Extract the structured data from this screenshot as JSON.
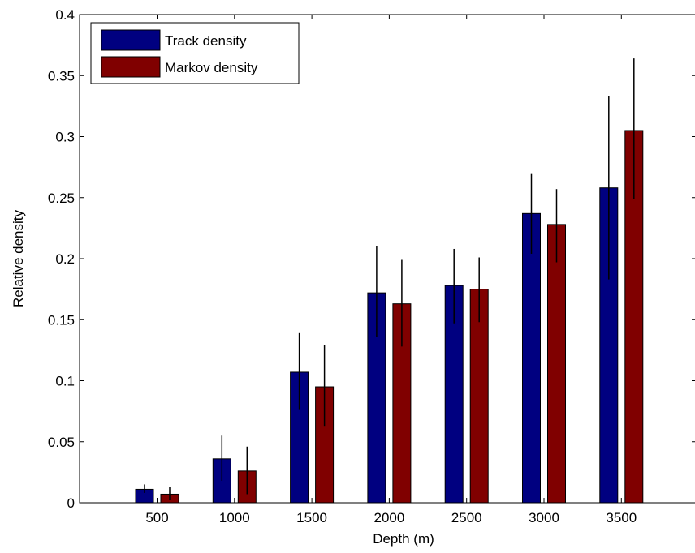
{
  "chart_data": {
    "type": "bar",
    "title": "",
    "xlabel": "Depth (m)",
    "ylabel": "Relative density",
    "categories": [
      "500",
      "1000",
      "1500",
      "2000",
      "2500",
      "3000",
      "3500"
    ],
    "ylim": [
      0,
      0.4
    ],
    "yticks": [
      "0",
      "0.05",
      "0.1",
      "0.15",
      "0.2",
      "0.25",
      "0.3",
      "0.35",
      "0.4"
    ],
    "grid": false,
    "legend_position": "top-left",
    "series": [
      {
        "name": "Track density",
        "color": "#000080",
        "values": [
          0.011,
          0.036,
          0.107,
          0.172,
          0.178,
          0.237,
          0.258
        ],
        "error_low": [
          0.008,
          0.018,
          0.076,
          0.136,
          0.147,
          0.204,
          0.183
        ],
        "error_high": [
          0.015,
          0.055,
          0.139,
          0.21,
          0.208,
          0.27,
          0.333
        ]
      },
      {
        "name": "Markov density",
        "color": "#800000",
        "values": [
          0.007,
          0.026,
          0.095,
          0.163,
          0.175,
          0.228,
          0.305
        ],
        "error_low": [
          0.002,
          0.007,
          0.063,
          0.128,
          0.148,
          0.197,
          0.249
        ],
        "error_high": [
          0.013,
          0.046,
          0.129,
          0.199,
          0.201,
          0.257,
          0.364
        ]
      }
    ]
  }
}
